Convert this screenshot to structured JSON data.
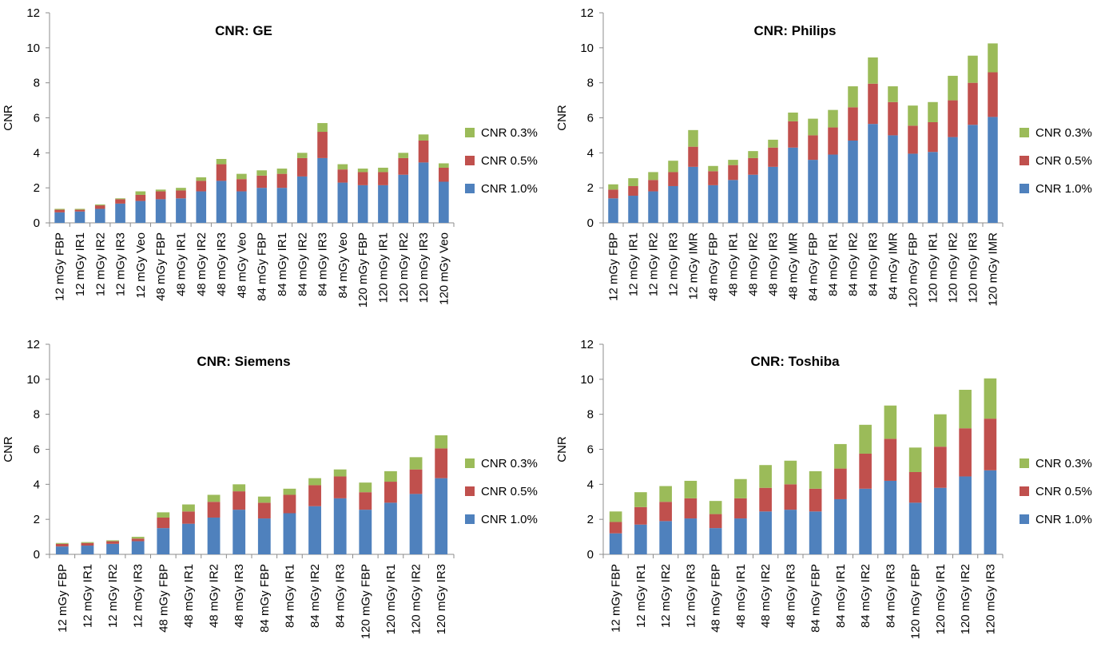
{
  "chart_data": [
    {
      "type": "bar",
      "stacked": true,
      "title": "CNR: GE",
      "ylabel": "CNR",
      "xlabel": "",
      "ylim": [
        0,
        12
      ],
      "yticks": [
        0,
        2,
        4,
        6,
        8,
        10,
        12
      ],
      "grid": false,
      "legend_position": "right",
      "categories": [
        "12 mGy FBP",
        "12 mGy IR1",
        "12 mGy IR2",
        "12 mGy IR3",
        "12 mGy Veo",
        "48 mGy FBP",
        "48 mGy IR1",
        "48 mGy IR2",
        "48 mGy IR3",
        "48 mGy Veo",
        "84 mGy FBP",
        "84 mGy IR1",
        "84 mGy IR2",
        "84 mGy IR3",
        "84 mGy Veo",
        "120 mGy FBP",
        "120 mGy IR1",
        "120 mGy IR2",
        "120 mGy IR3",
        "120 mGy Veo"
      ],
      "series": [
        {
          "name": "CNR 1.0%",
          "values": [
            0.6,
            0.65,
            0.8,
            1.1,
            1.25,
            1.35,
            1.4,
            1.8,
            2.4,
            1.8,
            2.0,
            2.0,
            2.65,
            3.7,
            2.3,
            2.15,
            2.15,
            2.75,
            3.45,
            2.35
          ]
        },
        {
          "name": "CNR 0.5%",
          "values": [
            0.15,
            0.1,
            0.2,
            0.25,
            0.35,
            0.45,
            0.45,
            0.6,
            0.95,
            0.7,
            0.7,
            0.8,
            1.05,
            1.5,
            0.75,
            0.75,
            0.75,
            0.95,
            1.25,
            0.8
          ]
        },
        {
          "name": "CNR 0.3%",
          "values": [
            0.05,
            0.05,
            0.05,
            0.05,
            0.2,
            0.1,
            0.15,
            0.2,
            0.3,
            0.3,
            0.3,
            0.3,
            0.3,
            0.5,
            0.3,
            0.2,
            0.25,
            0.3,
            0.35,
            0.25
          ]
        }
      ]
    },
    {
      "type": "bar",
      "stacked": true,
      "title": "CNR: Philips",
      "ylabel": "CNR",
      "xlabel": "",
      "ylim": [
        0,
        12
      ],
      "yticks": [
        0,
        2,
        4,
        6,
        8,
        10,
        12
      ],
      "grid": false,
      "legend_position": "right",
      "categories": [
        "12 mGy FBP",
        "12 mGy IR1",
        "12 mGy IR2",
        "12 mGy IR3",
        "12 mGy IMR",
        "48 mGy FBP",
        "48 mGy IR1",
        "48 mGy IR2",
        "48 mGy IR3",
        "48 mGy IMR",
        "84 mGy FBP",
        "84 mGy IR1",
        "84 mGy IR2",
        "84 mGy IR3",
        "84 mGy IMR",
        "120 mGy FBP",
        "120 mGy IR1",
        "120 mGy IR2",
        "120 mGy IR3",
        "120 mGy IMR"
      ],
      "series": [
        {
          "name": "CNR 1.0%",
          "values": [
            1.4,
            1.55,
            1.8,
            2.1,
            3.2,
            2.15,
            2.45,
            2.75,
            3.2,
            4.3,
            3.6,
            3.9,
            4.7,
            5.65,
            5.0,
            3.95,
            4.05,
            4.9,
            5.6,
            6.05
          ]
        },
        {
          "name": "CNR 0.5%",
          "values": [
            0.5,
            0.55,
            0.65,
            0.8,
            1.15,
            0.8,
            0.85,
            0.95,
            1.1,
            1.5,
            1.4,
            1.55,
            1.9,
            2.3,
            1.9,
            1.6,
            1.7,
            2.1,
            2.4,
            2.55
          ]
        },
        {
          "name": "CNR 0.3%",
          "values": [
            0.3,
            0.45,
            0.45,
            0.65,
            0.95,
            0.3,
            0.3,
            0.4,
            0.45,
            0.5,
            0.95,
            1.0,
            1.2,
            1.5,
            0.9,
            1.15,
            1.15,
            1.4,
            1.55,
            1.65
          ]
        }
      ]
    },
    {
      "type": "bar",
      "stacked": true,
      "title": "CNR: Siemens",
      "ylabel": "CNR",
      "xlabel": "",
      "ylim": [
        0,
        12
      ],
      "yticks": [
        0,
        2,
        4,
        6,
        8,
        10,
        12
      ],
      "grid": false,
      "legend_position": "right",
      "categories": [
        "12 mGy FBP",
        "12 mGy IR1",
        "12 mGy IR2",
        "12 mGy IR3",
        "48 mGy FBP",
        "48 mGy IR1",
        "48 mGy IR2",
        "48 mGy IR3",
        "84 mGy FBP",
        "84 mGy IR1",
        "84 mGy IR2",
        "84 mGy IR3",
        "120 mGy FBP",
        "120 mGy IR1",
        "120 mGy IR2",
        "120 mGy IR3"
      ],
      "series": [
        {
          "name": "CNR 1.0%",
          "values": [
            0.45,
            0.5,
            0.6,
            0.75,
            1.5,
            1.75,
            2.1,
            2.55,
            2.05,
            2.35,
            2.75,
            3.2,
            2.55,
            2.95,
            3.45,
            4.35
          ]
        },
        {
          "name": "CNR 0.5%",
          "values": [
            0.15,
            0.15,
            0.15,
            0.15,
            0.6,
            0.7,
            0.9,
            1.05,
            0.9,
            1.05,
            1.2,
            1.25,
            1.0,
            1.2,
            1.4,
            1.7
          ]
        },
        {
          "name": "CNR 0.3%",
          "values": [
            0.05,
            0.05,
            0.05,
            0.1,
            0.3,
            0.4,
            0.4,
            0.4,
            0.35,
            0.35,
            0.4,
            0.4,
            0.55,
            0.6,
            0.7,
            0.75
          ]
        }
      ]
    },
    {
      "type": "bar",
      "stacked": true,
      "title": "CNR: Toshiba",
      "ylabel": "CNR",
      "xlabel": "",
      "ylim": [
        0,
        12
      ],
      "yticks": [
        0,
        2,
        4,
        6,
        8,
        10,
        12
      ],
      "grid": false,
      "legend_position": "right",
      "categories": [
        "12 mGy FBP",
        "12 mGy IR1",
        "12 mGy IR2",
        "12 mGy IR3",
        "48 mGy FBP",
        "48 mGy IR1",
        "48 mGy IR2",
        "48 mGy IR3",
        "84 mGy FBP",
        "84 mGy IR1",
        "84 mGy IR2",
        "84 mGy IR3",
        "120 mGy FBP",
        "120 mGy IR1",
        "120 mGy IR2",
        "120 mGy IR3"
      ],
      "series": [
        {
          "name": "CNR 1.0%",
          "values": [
            1.2,
            1.7,
            1.9,
            2.05,
            1.5,
            2.05,
            2.45,
            2.55,
            2.45,
            3.15,
            3.75,
            4.2,
            2.95,
            3.8,
            4.45,
            4.8
          ]
        },
        {
          "name": "CNR 0.5%",
          "values": [
            0.65,
            1.0,
            1.1,
            1.15,
            0.8,
            1.15,
            1.35,
            1.45,
            1.3,
            1.75,
            2.0,
            2.4,
            1.75,
            2.35,
            2.75,
            2.95
          ]
        },
        {
          "name": "CNR 0.3%",
          "values": [
            0.6,
            0.85,
            0.9,
            1.0,
            0.75,
            1.1,
            1.3,
            1.35,
            1.0,
            1.4,
            1.65,
            1.9,
            1.4,
            1.85,
            2.2,
            2.3
          ]
        }
      ]
    }
  ],
  "colors": {
    "CNR 1.0%": "#4f81bd",
    "CNR 0.5%": "#c0504d",
    "CNR 0.3%": "#9bbb59",
    "axis": "#8c8c8c"
  }
}
